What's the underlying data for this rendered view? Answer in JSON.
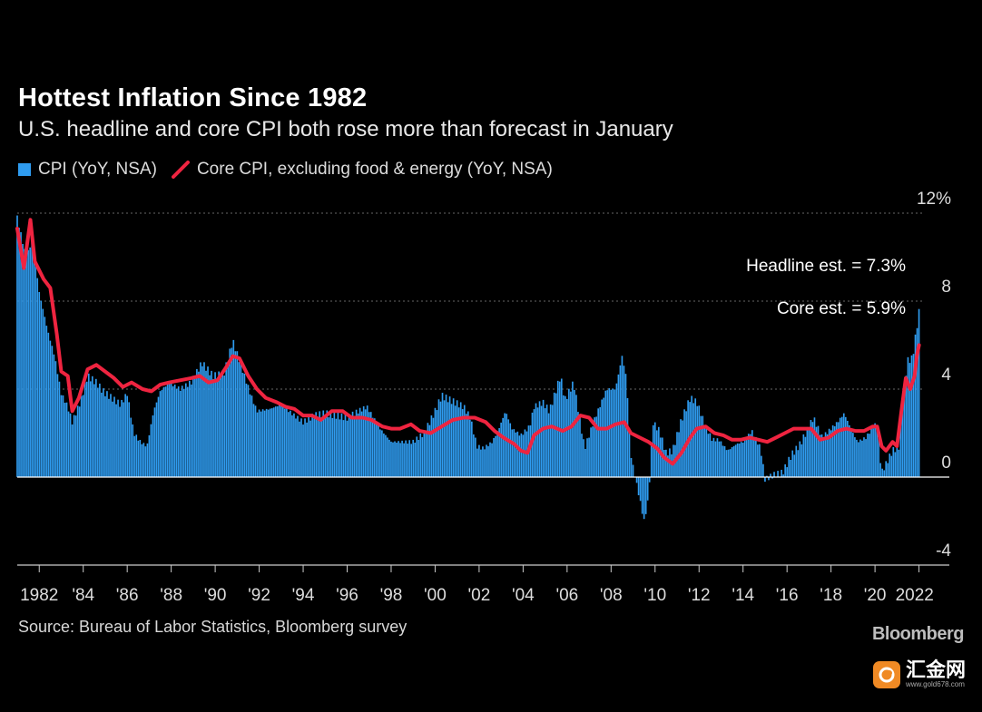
{
  "title": "Hottest Inflation Since 1982",
  "subtitle": "U.S. headline and core CPI both rose more than forecast in January",
  "legend": {
    "cpi": "CPI (YoY, NSA)",
    "core": "Core CPI, excluding food & energy (YoY, NSA)"
  },
  "source": "Source: Bureau of Labor Statistics, Bloomberg survey",
  "brand": "Bloomberg",
  "watermark": {
    "main": "汇金网",
    "sub": "www.gold678.com"
  },
  "colors": {
    "cpi": "#2f9cf0",
    "core": "#ef2440",
    "grid": "#666666",
    "text": "#ffffff",
    "background": "#000000"
  },
  "chart_data": {
    "type": "bar",
    "series": [
      {
        "name": "CPI (YoY, NSA)",
        "type": "bar"
      },
      {
        "name": "Core CPI, excluding food & energy (YoY, NSA)",
        "type": "line"
      }
    ],
    "x_range": [
      1981.0,
      2022.1
    ],
    "ylim": [
      -4,
      12
    ],
    "y_ticks": [
      {
        "value": 12,
        "label": "12%"
      },
      {
        "value": 8,
        "label": "8"
      },
      {
        "value": 4,
        "label": "4"
      },
      {
        "value": 0,
        "label": "0"
      },
      {
        "value": -4,
        "label": "-4"
      }
    ],
    "x_ticks": [
      {
        "value": 1982,
        "label": "1982"
      },
      {
        "value": 1984,
        "label": "'84"
      },
      {
        "value": 1986,
        "label": "'86"
      },
      {
        "value": 1988,
        "label": "'88"
      },
      {
        "value": 1990,
        "label": "'90"
      },
      {
        "value": 1992,
        "label": "'92"
      },
      {
        "value": 1994,
        "label": "'94"
      },
      {
        "value": 1996,
        "label": "'96"
      },
      {
        "value": 1998,
        "label": "'98"
      },
      {
        "value": 2000,
        "label": "'00"
      },
      {
        "value": 2002,
        "label": "'02"
      },
      {
        "value": 2004,
        "label": "'04"
      },
      {
        "value": 2006,
        "label": "'06"
      },
      {
        "value": 2008,
        "label": "'08"
      },
      {
        "value": 2010,
        "label": "'10"
      },
      {
        "value": 2012,
        "label": "'12"
      },
      {
        "value": 2014,
        "label": "'14"
      },
      {
        "value": 2016,
        "label": "'16"
      },
      {
        "value": 2018,
        "label": "'18"
      },
      {
        "value": 2020,
        "label": "'20"
      },
      {
        "value": 2022,
        "label": "2022"
      }
    ],
    "grid": true,
    "cpi_points": [
      [
        1981.0,
        11.8
      ],
      [
        1981.4,
        10.0
      ],
      [
        1981.7,
        10.8
      ],
      [
        1982.0,
        8.4
      ],
      [
        1982.4,
        6.6
      ],
      [
        1982.7,
        5.5
      ],
      [
        1983.0,
        3.8
      ],
      [
        1983.3,
        3.2
      ],
      [
        1983.5,
        2.5
      ],
      [
        1983.9,
        3.5
      ],
      [
        1984.2,
        4.6
      ],
      [
        1984.6,
        4.3
      ],
      [
        1984.9,
        3.9
      ],
      [
        1985.3,
        3.6
      ],
      [
        1985.7,
        3.3
      ],
      [
        1986.0,
        3.8
      ],
      [
        1986.3,
        2.0
      ],
      [
        1986.6,
        1.6
      ],
      [
        1986.9,
        1.4
      ],
      [
        1987.2,
        3.0
      ],
      [
        1987.5,
        3.9
      ],
      [
        1987.9,
        4.3
      ],
      [
        1988.4,
        4.0
      ],
      [
        1988.9,
        4.3
      ],
      [
        1989.4,
        5.2
      ],
      [
        1989.9,
        4.6
      ],
      [
        1990.4,
        4.7
      ],
      [
        1990.8,
        6.2
      ],
      [
        1991.2,
        5.0
      ],
      [
        1991.6,
        3.8
      ],
      [
        1991.9,
        3.0
      ],
      [
        1992.5,
        3.1
      ],
      [
        1993.0,
        3.3
      ],
      [
        1993.6,
        2.8
      ],
      [
        1994.0,
        2.5
      ],
      [
        1994.5,
        2.8
      ],
      [
        1995.0,
        2.9
      ],
      [
        1995.5,
        2.8
      ],
      [
        1996.0,
        2.7
      ],
      [
        1996.5,
        3.0
      ],
      [
        1996.9,
        3.2
      ],
      [
        1997.5,
        2.2
      ],
      [
        1998.0,
        1.6
      ],
      [
        1998.5,
        1.6
      ],
      [
        1999.0,
        1.6
      ],
      [
        1999.5,
        2.0
      ],
      [
        2000.0,
        3.0
      ],
      [
        2000.3,
        3.7
      ],
      [
        2000.9,
        3.4
      ],
      [
        2001.3,
        3.2
      ],
      [
        2001.6,
        2.7
      ],
      [
        2001.9,
        1.4
      ],
      [
        2002.2,
        1.3
      ],
      [
        2002.6,
        1.6
      ],
      [
        2002.9,
        2.2
      ],
      [
        2003.2,
        3.0
      ],
      [
        2003.5,
        2.2
      ],
      [
        2003.9,
        1.9
      ],
      [
        2004.3,
        2.3
      ],
      [
        2004.5,
        3.2
      ],
      [
        2004.9,
        3.4
      ],
      [
        2005.2,
        3.0
      ],
      [
        2005.7,
        4.6
      ],
      [
        2005.9,
        3.5
      ],
      [
        2006.3,
        4.3
      ],
      [
        2006.8,
        1.3
      ],
      [
        2007.2,
        2.5
      ],
      [
        2007.8,
        4.0
      ],
      [
        2008.2,
        4.0
      ],
      [
        2008.5,
        5.5
      ],
      [
        2008.7,
        4.5
      ],
      [
        2008.9,
        1.0
      ],
      [
        2009.1,
        0.0
      ],
      [
        2009.3,
        -1.0
      ],
      [
        2009.5,
        -2.0
      ],
      [
        2009.7,
        -1.0
      ],
      [
        2009.9,
        2.5
      ],
      [
        2010.2,
        2.1
      ],
      [
        2010.5,
        1.1
      ],
      [
        2010.8,
        1.2
      ],
      [
        2011.2,
        2.6
      ],
      [
        2011.6,
        3.6
      ],
      [
        2011.9,
        3.4
      ],
      [
        2012.3,
        2.3
      ],
      [
        2012.6,
        1.7
      ],
      [
        2012.9,
        1.7
      ],
      [
        2013.3,
        1.2
      ],
      [
        2013.7,
        1.5
      ],
      [
        2014.0,
        1.6
      ],
      [
        2014.4,
        2.1
      ],
      [
        2014.8,
        1.3
      ],
      [
        2015.0,
        -0.1
      ],
      [
        2015.4,
        0.1
      ],
      [
        2015.8,
        0.2
      ],
      [
        2016.2,
        1.0
      ],
      [
        2016.6,
        1.5
      ],
      [
        2016.9,
        2.1
      ],
      [
        2017.2,
        2.7
      ],
      [
        2017.6,
        1.8
      ],
      [
        2017.9,
        2.1
      ],
      [
        2018.3,
        2.5
      ],
      [
        2018.6,
        2.9
      ],
      [
        2018.9,
        2.2
      ],
      [
        2019.2,
        1.6
      ],
      [
        2019.6,
        1.8
      ],
      [
        2019.9,
        2.3
      ],
      [
        2020.1,
        2.4
      ],
      [
        2020.3,
        0.2
      ],
      [
        2020.5,
        0.6
      ],
      [
        2020.8,
        1.2
      ],
      [
        2021.1,
        1.4
      ],
      [
        2021.3,
        4.0
      ],
      [
        2021.5,
        5.3
      ],
      [
        2021.7,
        5.4
      ],
      [
        2021.9,
        6.8
      ],
      [
        2022.0,
        7.5
      ]
    ],
    "core_points": [
      [
        1981.0,
        11.3
      ],
      [
        1981.3,
        9.5
      ],
      [
        1981.6,
        11.7
      ],
      [
        1981.8,
        9.8
      ],
      [
        1982.2,
        9.0
      ],
      [
        1982.5,
        8.6
      ],
      [
        1982.8,
        6.5
      ],
      [
        1983.0,
        4.8
      ],
      [
        1983.3,
        4.6
      ],
      [
        1983.5,
        3.0
      ],
      [
        1983.8,
        3.6
      ],
      [
        1984.2,
        4.9
      ],
      [
        1984.6,
        5.1
      ],
      [
        1985.0,
        4.8
      ],
      [
        1985.4,
        4.5
      ],
      [
        1985.8,
        4.1
      ],
      [
        1986.2,
        4.3
      ],
      [
        1986.7,
        4.0
      ],
      [
        1987.1,
        3.9
      ],
      [
        1987.5,
        4.2
      ],
      [
        1987.9,
        4.3
      ],
      [
        1988.4,
        4.4
      ],
      [
        1988.9,
        4.5
      ],
      [
        1989.3,
        4.6
      ],
      [
        1989.7,
        4.3
      ],
      [
        1990.1,
        4.4
      ],
      [
        1990.5,
        5.0
      ],
      [
        1990.8,
        5.5
      ],
      [
        1991.1,
        5.4
      ],
      [
        1991.5,
        4.6
      ],
      [
        1991.9,
        4.0
      ],
      [
        1992.3,
        3.6
      ],
      [
        1992.8,
        3.4
      ],
      [
        1993.2,
        3.2
      ],
      [
        1993.6,
        3.1
      ],
      [
        1994.0,
        2.8
      ],
      [
        1994.4,
        2.8
      ],
      [
        1994.8,
        2.6
      ],
      [
        1995.3,
        3.0
      ],
      [
        1995.8,
        3.0
      ],
      [
        1996.2,
        2.7
      ],
      [
        1996.7,
        2.7
      ],
      [
        1997.1,
        2.6
      ],
      [
        1997.6,
        2.3
      ],
      [
        1998.0,
        2.2
      ],
      [
        1998.4,
        2.2
      ],
      [
        1998.9,
        2.4
      ],
      [
        1999.3,
        2.1
      ],
      [
        1999.8,
        2.0
      ],
      [
        2000.3,
        2.3
      ],
      [
        2000.8,
        2.6
      ],
      [
        2001.3,
        2.7
      ],
      [
        2001.8,
        2.7
      ],
      [
        2002.3,
        2.5
      ],
      [
        2002.7,
        2.1
      ],
      [
        2003.1,
        1.8
      ],
      [
        2003.6,
        1.5
      ],
      [
        2003.9,
        1.2
      ],
      [
        2004.2,
        1.1
      ],
      [
        2004.5,
        1.9
      ],
      [
        2004.9,
        2.2
      ],
      [
        2005.3,
        2.3
      ],
      [
        2005.8,
        2.1
      ],
      [
        2006.2,
        2.3
      ],
      [
        2006.6,
        2.8
      ],
      [
        2007.0,
        2.7
      ],
      [
        2007.4,
        2.2
      ],
      [
        2007.8,
        2.2
      ],
      [
        2008.2,
        2.4
      ],
      [
        2008.6,
        2.5
      ],
      [
        2008.9,
        2.0
      ],
      [
        2009.3,
        1.8
      ],
      [
        2009.7,
        1.6
      ],
      [
        2010.1,
        1.3
      ],
      [
        2010.4,
        0.9
      ],
      [
        2010.8,
        0.6
      ],
      [
        2011.2,
        1.1
      ],
      [
        2011.6,
        1.8
      ],
      [
        2011.9,
        2.2
      ],
      [
        2012.3,
        2.3
      ],
      [
        2012.7,
        2.0
      ],
      [
        2013.1,
        1.9
      ],
      [
        2013.5,
        1.7
      ],
      [
        2013.9,
        1.7
      ],
      [
        2014.3,
        1.8
      ],
      [
        2014.7,
        1.7
      ],
      [
        2015.1,
        1.6
      ],
      [
        2015.5,
        1.8
      ],
      [
        2015.9,
        2.0
      ],
      [
        2016.3,
        2.2
      ],
      [
        2016.7,
        2.2
      ],
      [
        2017.1,
        2.2
      ],
      [
        2017.5,
        1.7
      ],
      [
        2017.9,
        1.8
      ],
      [
        2018.3,
        2.1
      ],
      [
        2018.7,
        2.2
      ],
      [
        2019.1,
        2.1
      ],
      [
        2019.5,
        2.1
      ],
      [
        2019.9,
        2.3
      ],
      [
        2020.1,
        2.3
      ],
      [
        2020.3,
        1.4
      ],
      [
        2020.5,
        1.2
      ],
      [
        2020.8,
        1.6
      ],
      [
        2021.0,
        1.4
      ],
      [
        2021.2,
        3.0
      ],
      [
        2021.4,
        4.5
      ],
      [
        2021.6,
        4.0
      ],
      [
        2021.8,
        4.6
      ],
      [
        2021.9,
        5.5
      ],
      [
        2022.0,
        6.0
      ]
    ],
    "annotations": [
      {
        "text": "Headline est. = 7.3%",
        "x": 2022.0,
        "y": 7.3
      },
      {
        "text": "Core est. = 5.9%",
        "x": 2022.0,
        "y": 5.9
      }
    ]
  }
}
